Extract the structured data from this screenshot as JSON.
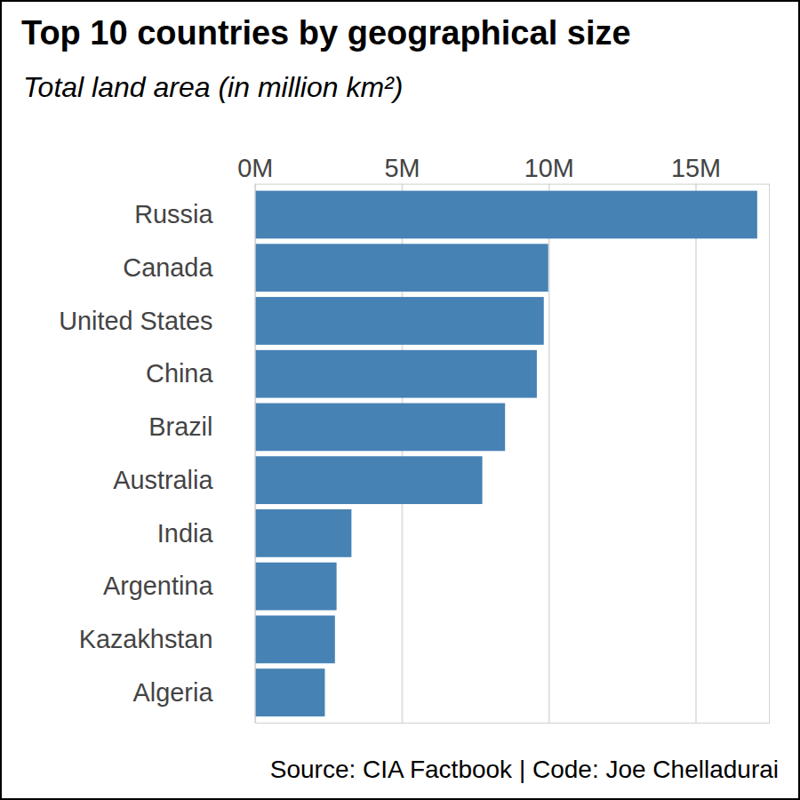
{
  "chart_data": {
    "type": "bar",
    "orientation": "horizontal",
    "title": "Top 10 countries by geographical size",
    "subtitle": "Total land area (in million km²)",
    "caption": "Source: CIA Factbook | Code: Joe Chelladurai",
    "categories": [
      "Russia",
      "Canada",
      "United States",
      "China",
      "Brazil",
      "Australia",
      "India",
      "Argentina",
      "Kazakhstan",
      "Algeria"
    ],
    "values": [
      17.098,
      9.985,
      9.834,
      9.597,
      8.516,
      7.741,
      3.287,
      2.78,
      2.725,
      2.382
    ],
    "color": "#4682b4",
    "xlim": [
      0,
      17.5
    ],
    "xticks": [
      {
        "value": 0,
        "label": "0M"
      },
      {
        "value": 5,
        "label": "5M"
      },
      {
        "value": 10,
        "label": "10M"
      },
      {
        "value": 15,
        "label": "15M"
      }
    ],
    "grid": true
  }
}
